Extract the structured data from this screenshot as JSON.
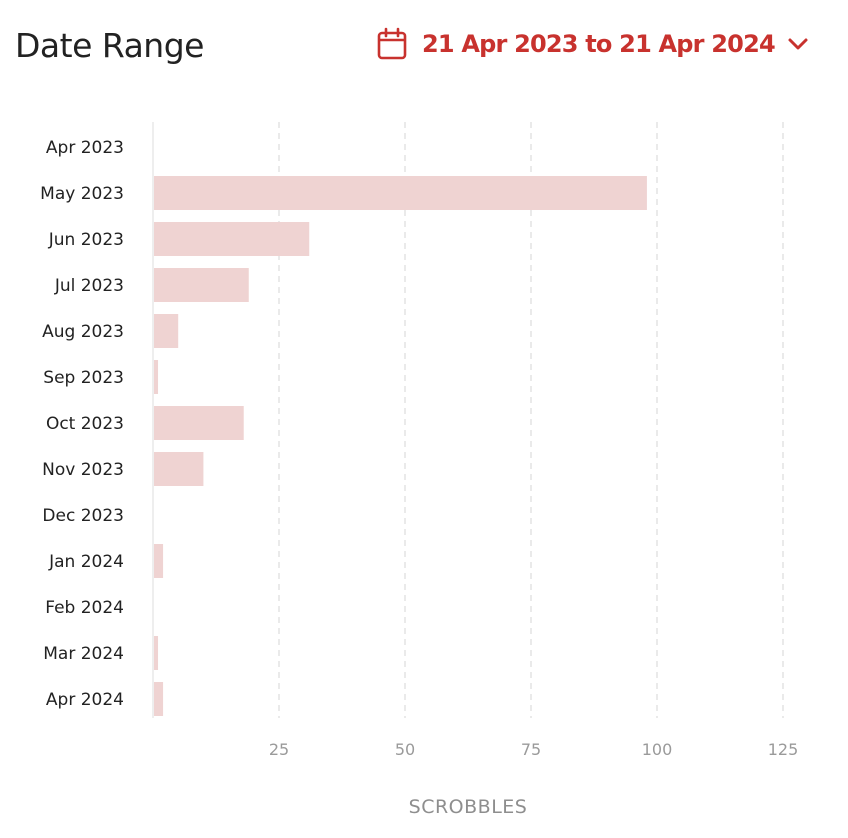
{
  "header": {
    "title": "Date Range",
    "range_label": "21 Apr 2023 to 21 Apr 2024",
    "calendar_icon": "calendar-icon",
    "dropdown_icon": "chevron-down-icon",
    "accent_color": "#c8322e"
  },
  "chart_data": {
    "type": "bar",
    "orientation": "horizontal",
    "categories": [
      "Apr 2023",
      "May 2023",
      "Jun 2023",
      "Jul 2023",
      "Aug 2023",
      "Sep 2023",
      "Oct 2023",
      "Nov 2023",
      "Dec 2023",
      "Jan 2024",
      "Feb 2024",
      "Mar 2024",
      "Apr 2024"
    ],
    "values": [
      0,
      98,
      31,
      19,
      5,
      1,
      18,
      10,
      0,
      2,
      0,
      1,
      2
    ],
    "xlabel": "SCROBBLES",
    "xlim": [
      0,
      125
    ],
    "xticks": [
      25,
      50,
      75,
      100,
      125
    ],
    "grid": "vertical dashed",
    "bar_color": "#efd3d2"
  }
}
